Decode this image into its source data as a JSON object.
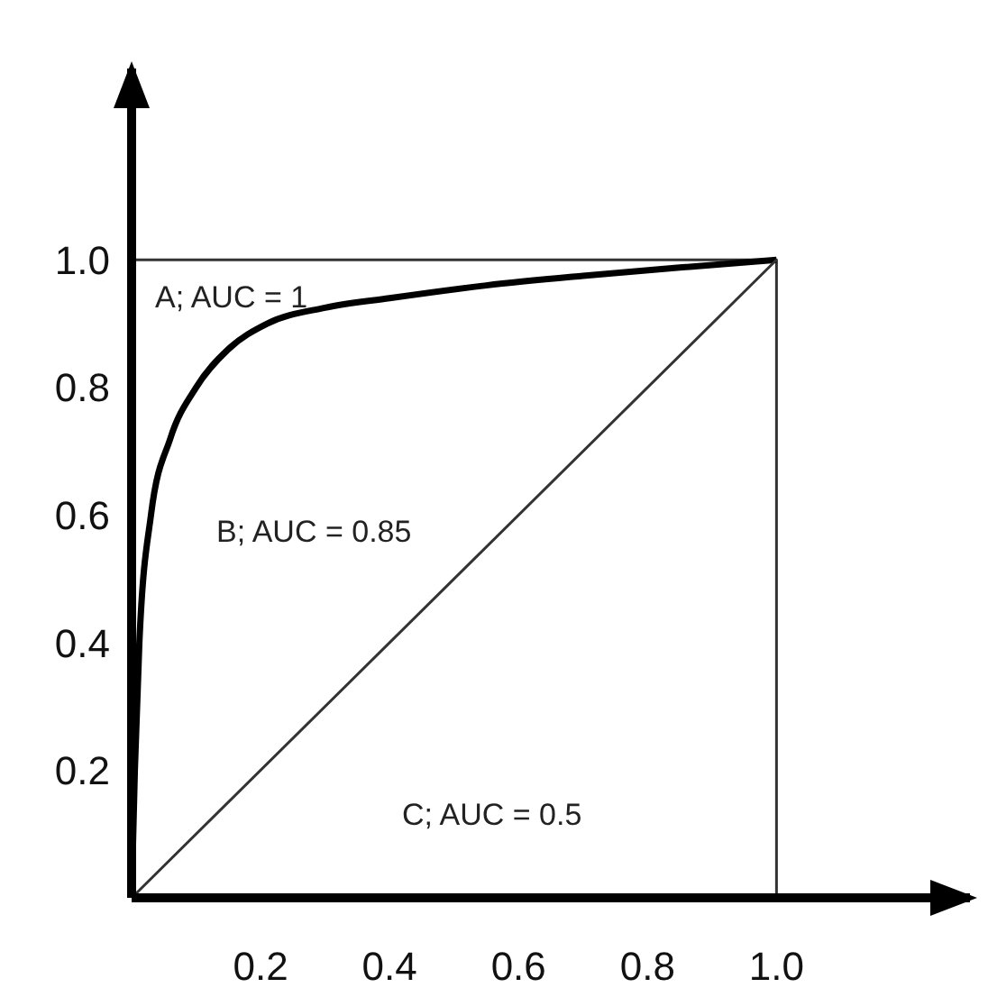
{
  "chart_data": {
    "type": "line",
    "xlim": [
      0,
      1.3
    ],
    "ylim": [
      0,
      1.3
    ],
    "xticks": [
      0.2,
      0.4,
      0.6,
      0.8,
      {
        "value": 1,
        "label": "1.0"
      }
    ],
    "yticks": [
      0.2,
      0.4,
      0.6,
      0.8,
      {
        "value": 1,
        "label": "1.0"
      }
    ],
    "marker": "none",
    "series": [
      {
        "color": "#333333",
        "x": [
          0,
          1,
          1
        ],
        "values": [
          1,
          1,
          0
        ]
      },
      {
        "color": "#000000",
        "x": [
          0,
          0.005,
          0.012,
          0.03,
          0.06,
          0.1,
          0.15,
          0.21,
          0.3,
          0.4,
          0.55,
          0.7,
          0.85,
          1
        ],
        "values": [
          0,
          0.2,
          0.4,
          0.6,
          0.72,
          0.8,
          0.86,
          0.9,
          0.925,
          0.94,
          0.96,
          0.975,
          0.988,
          1
        ]
      },
      {
        "color": "#333333",
        "x": [
          0,
          0.5,
          1
        ],
        "values": [
          0,
          0.5,
          1
        ]
      }
    ],
    "annotations": [
      "A; AUC = 1",
      "B; AUC = 0.85",
      "C; AUC = 0.5"
    ]
  }
}
